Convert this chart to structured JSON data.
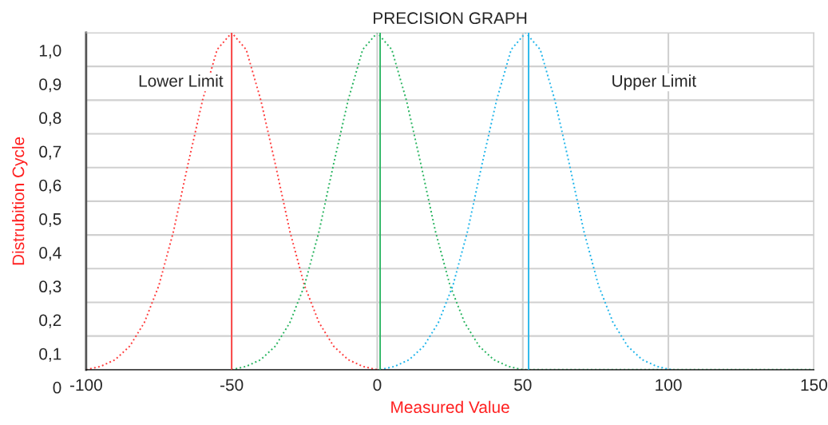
{
  "chart_data": {
    "type": "line",
    "title": "PRECISION GRAPH",
    "xlabel": "Measured Value",
    "ylabel": "Distrubition Cycle",
    "series": [
      {
        "color": "#ff3b3b",
        "x": [
          -100,
          -95,
          -90,
          -85,
          -80,
          -75,
          -70,
          -65,
          -60,
          -55,
          -50,
          -45,
          -40,
          -35,
          -30,
          -25,
          -20,
          -15,
          -10,
          -5,
          0
        ],
        "values": [
          0,
          0.01,
          0.03,
          0.07,
          0.14,
          0.25,
          0.41,
          0.61,
          0.8,
          0.95,
          1.0,
          0.95,
          0.8,
          0.61,
          0.41,
          0.25,
          0.14,
          0.07,
          0.03,
          0.01,
          0
        ]
      },
      {
        "color": "#26b35e",
        "x": [
          -50,
          -45,
          -40,
          -35,
          -30,
          -25,
          -20,
          -15,
          -10,
          -5,
          0,
          5,
          10,
          15,
          20,
          25,
          30,
          35,
          40,
          45,
          50,
          150
        ],
        "values": [
          0,
          0.01,
          0.03,
          0.07,
          0.14,
          0.25,
          0.41,
          0.61,
          0.8,
          0.95,
          1.0,
          0.95,
          0.8,
          0.61,
          0.41,
          0.25,
          0.14,
          0.07,
          0.03,
          0.01,
          0,
          0
        ]
      },
      {
        "color": "#1eb4ea",
        "x": [
          1,
          6,
          11,
          16,
          21,
          26,
          31,
          36,
          41,
          46,
          51,
          56,
          61,
          66,
          71,
          76,
          81,
          86,
          91,
          96,
          101
        ],
        "values": [
          0,
          0.01,
          0.03,
          0.07,
          0.14,
          0.25,
          0.41,
          0.61,
          0.8,
          0.95,
          1.0,
          0.95,
          0.8,
          0.61,
          0.41,
          0.25,
          0.14,
          0.07,
          0.03,
          0.01,
          0
        ]
      }
    ],
    "line_style": "dotted",
    "ref_lines": [
      {
        "axis": "x",
        "value": -50,
        "color": "#ff3b3b"
      },
      {
        "axis": "x",
        "value": 1,
        "color": "#26b35e"
      },
      {
        "axis": "x",
        "value": 52,
        "color": "#1eb4ea"
      }
    ],
    "annotations": [
      "Lower Limit",
      "Upper Limit"
    ],
    "xlim": [
      -100,
      150
    ],
    "xticks": [
      -100,
      -50,
      0,
      50,
      100,
      150
    ],
    "ylim": [
      0,
      1.0
    ],
    "yticks": [
      {
        "value": 0,
        "label": "0"
      },
      {
        "value": 0.1,
        "label": "0,1"
      },
      {
        "value": 0.2,
        "label": "0,2"
      },
      {
        "value": 0.3,
        "label": "0,3"
      },
      {
        "value": 0.4,
        "label": "0,4"
      },
      {
        "value": 0.5,
        "label": "0,5"
      },
      {
        "value": 0.6,
        "label": "0,6"
      },
      {
        "value": 0.7,
        "label": "0,7"
      },
      {
        "value": 0.8,
        "label": "0,8"
      },
      {
        "value": 0.9,
        "label": "0,9"
      },
      {
        "value": 1.0,
        "label": "1,0"
      }
    ],
    "grid": true
  }
}
